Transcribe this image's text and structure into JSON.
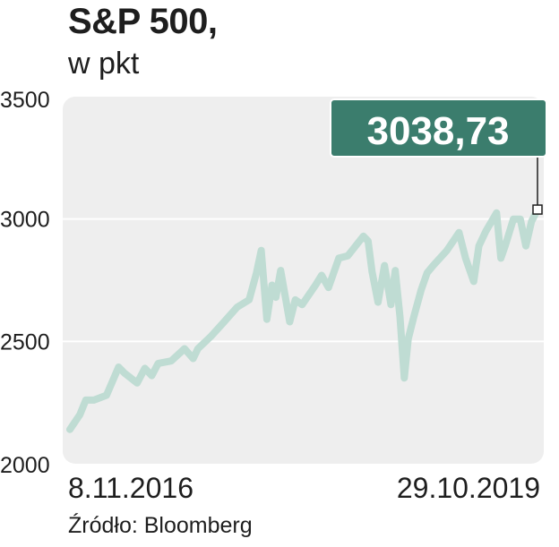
{
  "header": {
    "title": "S&P 500,",
    "subtitle": "w pkt"
  },
  "source": "Źródło: Bloomberg",
  "colors": {
    "plot_bg": "#eeeeee",
    "line": "#bfdcd3",
    "callout": "#3b7d6d",
    "text": "#1e1e1e",
    "grid": "#ffffff"
  },
  "chart_data": {
    "type": "line",
    "title": "S&P 500,",
    "ylabel": "w pkt",
    "ylim": [
      2000,
      3500
    ],
    "yticks": [
      3500,
      3000,
      2500,
      2000
    ],
    "ytick_labels": [
      "3500",
      "3000",
      "2500",
      "2000"
    ],
    "grid": true,
    "x_start_label": "8.11.2016",
    "x_end_label": "29.10.2019",
    "last_value_label": "3038,73",
    "series": [
      {
        "x": [
          "2016-11-08",
          "2016-12-01",
          "2016-12-15",
          "2017-01-03",
          "2017-02-01",
          "2017-03-01",
          "2017-03-15",
          "2017-04-13",
          "2017-05-01",
          "2017-05-17",
          "2017-06-01",
          "2017-07-01",
          "2017-08-01",
          "2017-08-21",
          "2017-09-01",
          "2017-10-01",
          "2017-11-01",
          "2017-12-01",
          "2017-12-29",
          "2018-01-15",
          "2018-01-26",
          "2018-02-08",
          "2018-02-20",
          "2018-03-01",
          "2018-03-12",
          "2018-04-02",
          "2018-04-15",
          "2018-05-01",
          "2018-06-01",
          "2018-06-15",
          "2018-07-01",
          "2018-07-25",
          "2018-08-15",
          "2018-09-20",
          "2018-10-01",
          "2018-10-10",
          "2018-10-24",
          "2018-11-08",
          "2018-11-23",
          "2018-12-03",
          "2018-12-14",
          "2018-12-24",
          "2019-01-02",
          "2019-01-15",
          "2019-02-01",
          "2019-02-15",
          "2019-03-01",
          "2019-04-01",
          "2019-04-30",
          "2019-05-15",
          "2019-06-03",
          "2019-06-15",
          "2019-07-01",
          "2019-07-26",
          "2019-08-05",
          "2019-08-15",
          "2019-09-03",
          "2019-09-19",
          "2019-10-02",
          "2019-10-15",
          "2019-10-29"
        ],
        "values": [
          2140,
          2200,
          2260,
          2260,
          2280,
          2395,
          2370,
          2330,
          2390,
          2360,
          2410,
          2420,
          2470,
          2430,
          2470,
          2520,
          2580,
          2640,
          2670,
          2780,
          2872,
          2590,
          2730,
          2680,
          2790,
          2580,
          2670,
          2650,
          2730,
          2770,
          2720,
          2840,
          2850,
          2930,
          2910,
          2785,
          2660,
          2810,
          2650,
          2790,
          2600,
          2350,
          2510,
          2600,
          2710,
          2780,
          2810,
          2870,
          2945,
          2840,
          2745,
          2890,
          2950,
          3025,
          2840,
          2890,
          3000,
          3000,
          2890,
          2990,
          3038.73
        ]
      }
    ]
  }
}
